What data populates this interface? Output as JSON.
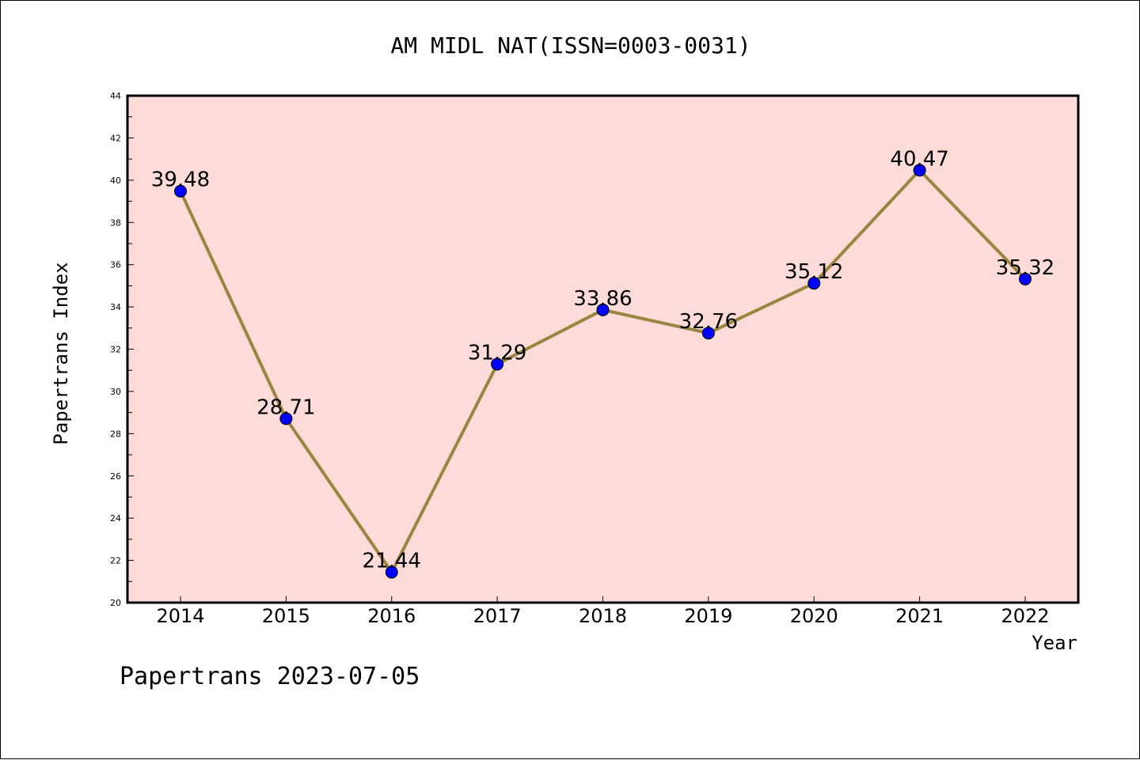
{
  "colors": {
    "plot_background": "#fddbd8",
    "line": "#9a8540",
    "marker": "#0000ff",
    "axis": "#000000"
  },
  "footer": "Papertrans 2023-07-05",
  "chart_data": {
    "type": "line",
    "title": "AM MIDL NAT(ISSN=0003-0031)",
    "xlabel": "Year",
    "ylabel": "Papertrans Index",
    "categories": [
      "2014",
      "2015",
      "2016",
      "2017",
      "2018",
      "2019",
      "2020",
      "2021",
      "2022"
    ],
    "series": [
      {
        "values": [
          39.48,
          28.71,
          21.44,
          31.29,
          33.86,
          32.76,
          35.12,
          40.47,
          35.32
        ],
        "labels": [
          "39.48",
          "28.71",
          "21.44",
          "31.29",
          "33.86",
          "32.76",
          "35.12",
          "40.47",
          "35.32"
        ]
      }
    ],
    "ylim": [
      20,
      44
    ],
    "yticks": [
      "20",
      "22",
      "24",
      "26",
      "28",
      "30",
      "32",
      "34",
      "36",
      "38",
      "40",
      "42",
      "44"
    ],
    "marker": "circle",
    "grid": false,
    "legend": "none"
  }
}
